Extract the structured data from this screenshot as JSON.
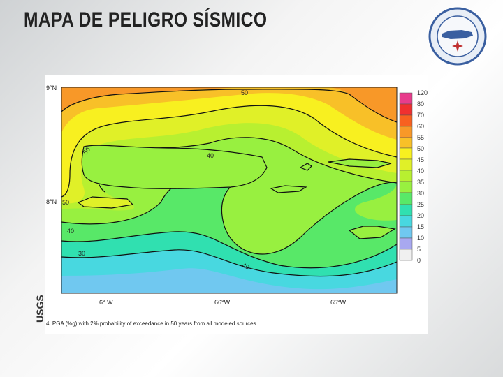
{
  "slide": {
    "title": "MAPA DE PELIGRO SÍSMICO",
    "side_label": "USGS"
  },
  "map": {
    "lat_labels": [
      "9°N",
      "8°N"
    ],
    "lon_labels": [
      "6° W",
      "66°W",
      "65°W"
    ],
    "contour_labels": [
      "50",
      "50",
      "40",
      "50",
      "40",
      "30",
      "40"
    ],
    "legend": [
      "120",
      "80",
      "70",
      "60",
      "55",
      "50",
      "45",
      "40",
      "35",
      "30",
      "25",
      "20",
      "15",
      "10",
      "5",
      "0"
    ],
    "caption": "4: PGA (%g) with 2% probability of exceedance in 50 years from all modeled sources."
  }
}
